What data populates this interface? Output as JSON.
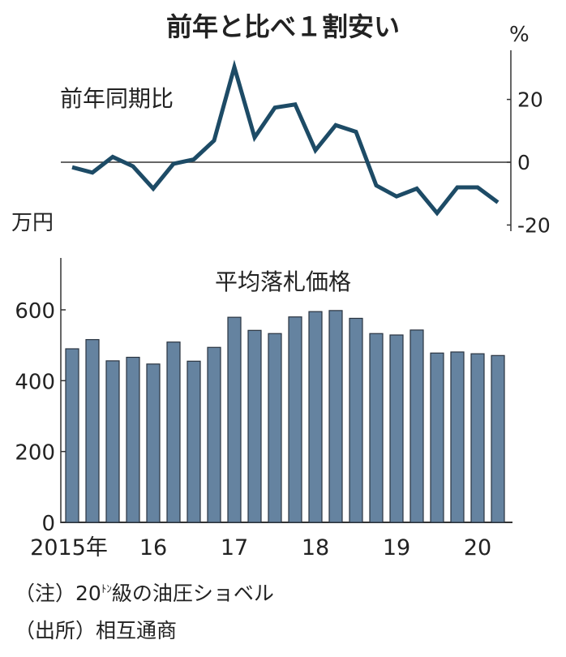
{
  "title": "前年と比べ１割安い",
  "notes": {
    "note_prefix": "（注）20",
    "note_unit": "ﾄﾝ",
    "note_rest": "級の油圧ショベル",
    "source": "（出所）相互通商"
  },
  "colors": {
    "line": "#1d4b66",
    "bar": "#6583a0",
    "bar_edge": "#2a3440",
    "axis": "#333333"
  },
  "chart_data": [
    {
      "type": "line",
      "title": "前年同期比",
      "unit": "%",
      "x": [
        "2015Q1",
        "2015Q2",
        "2015Q3",
        "2015Q4",
        "2016Q1",
        "2016Q2",
        "2016Q3",
        "2016Q4",
        "2017Q1",
        "2017Q2",
        "2017Q3",
        "2017Q4",
        "2018Q1",
        "2018Q2",
        "2018Q3",
        "2018Q4",
        "2019Q1",
        "2019Q2",
        "2019Q3",
        "2019Q4",
        "2020Q1",
        "2020Q2"
      ],
      "values": [
        -1.6,
        -3.3,
        1.7,
        -1.3,
        -8.4,
        -0.5,
        0.9,
        6.9,
        30.3,
        7.9,
        17.4,
        18.4,
        3.8,
        11.8,
        9.7,
        -7.4,
        -10.9,
        -8.4,
        -16.2,
        -8.0,
        -8.0,
        -12.8
      ],
      "yticks": [
        "20",
        "0",
        "-20"
      ],
      "ytick_values": [
        20,
        0,
        -20
      ],
      "ylim": [
        -22,
        33
      ],
      "y_axis": "right"
    },
    {
      "type": "bar",
      "title": "平均落札価格",
      "unit": "万円",
      "categories": [
        "2015Q1",
        "2015Q2",
        "2015Q3",
        "2015Q4",
        "2016Q1",
        "2016Q2",
        "2016Q3",
        "2016Q4",
        "2017Q1",
        "2017Q2",
        "2017Q3",
        "2017Q4",
        "2018Q1",
        "2018Q2",
        "2018Q3",
        "2018Q4",
        "2019Q1",
        "2019Q2",
        "2019Q3",
        "2019Q4",
        "2020Q1",
        "2020Q2"
      ],
      "values": [
        490,
        516,
        456,
        466,
        447,
        509,
        455,
        494,
        579,
        542,
        533,
        580,
        595,
        598,
        576,
        533,
        529,
        543,
        478,
        481,
        476,
        471
      ],
      "yticks": [
        "600",
        "400",
        "200",
        "0"
      ],
      "ytick_values": [
        600,
        400,
        200,
        0
      ],
      "ylim": [
        0,
        740
      ],
      "xtick_labels": [
        "2015年",
        "16",
        "17",
        "18",
        "19",
        "20"
      ],
      "xtick_indices": [
        0,
        4,
        8,
        12,
        16,
        20
      ]
    }
  ]
}
